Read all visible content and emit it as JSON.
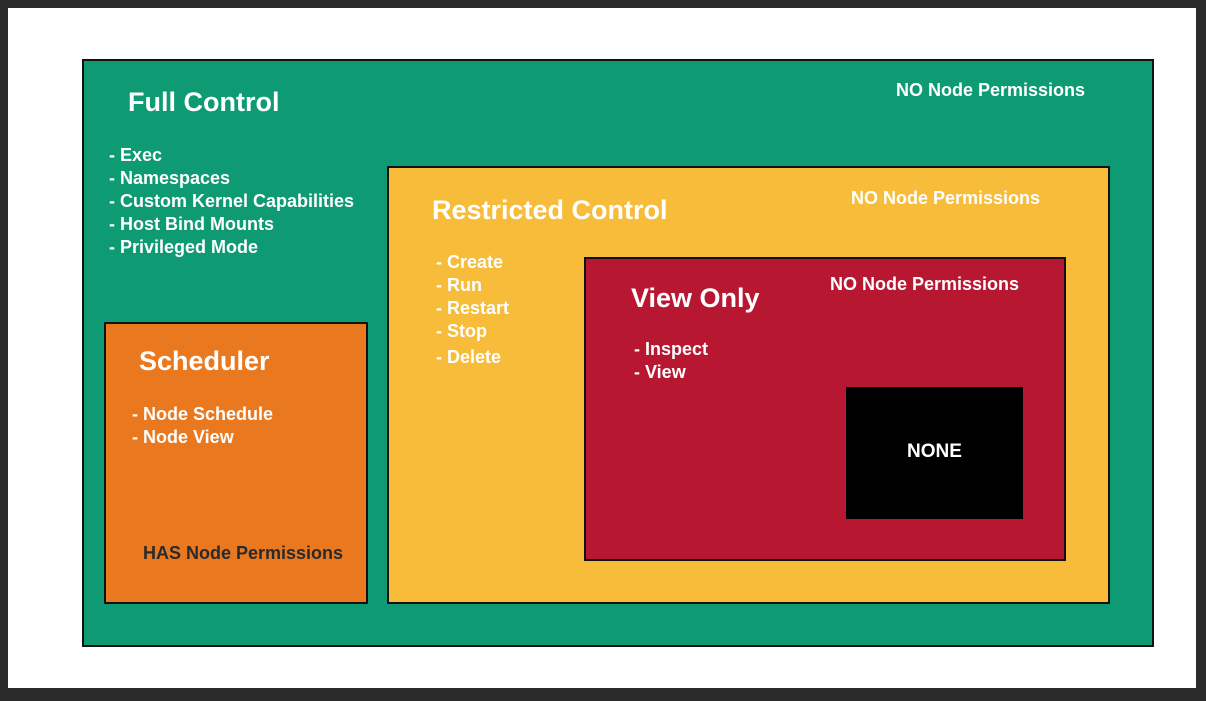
{
  "full_control": {
    "title": "Full Control",
    "node_permissions": "NO Node Permissions",
    "items": [
      "- Exec",
      "- Namespaces",
      "- Custom Kernel Capabilities",
      "- Host Bind Mounts",
      "- Privileged Mode"
    ]
  },
  "restricted_control": {
    "title": "Restricted Control",
    "node_permissions": "NO Node Permissions",
    "items": [
      "- Create",
      "- Run",
      "- Restart",
      "- Stop",
      "- Delete"
    ]
  },
  "view_only": {
    "title": "View Only",
    "node_permissions": "NO Node Permissions",
    "items": [
      "- Inspect",
      "- View"
    ]
  },
  "none": {
    "label": "NONE"
  },
  "scheduler": {
    "title": "Scheduler",
    "node_permissions": "HAS Node Permissions",
    "items": [
      "- Node Schedule",
      "- Node View"
    ]
  },
  "colors": {
    "full_control": "#0e9a72",
    "restricted_control": "#f6bc3a",
    "view_only": "#b71730",
    "none": "#000000",
    "scheduler": "#e9781f"
  }
}
